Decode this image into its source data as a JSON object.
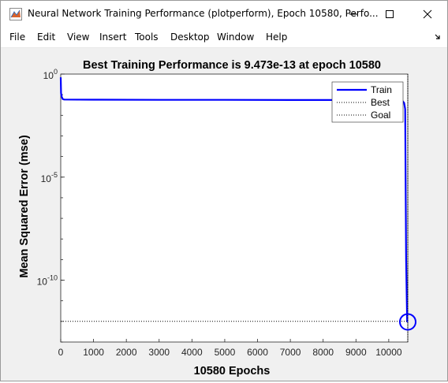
{
  "window": {
    "title": "Neural Network Training Performance (plotperform), Epoch 10580, Perfo...",
    "icon": "matlab-figure-icon",
    "controls": [
      "minimize-icon",
      "maximize-icon",
      "close-icon"
    ]
  },
  "menubar": {
    "items": [
      "File",
      "Edit",
      "View",
      "Insert",
      "Tools",
      "Desktop",
      "Window",
      "Help"
    ],
    "dock_icon": "dock-arrow-icon"
  },
  "chart_data": {
    "type": "line",
    "title": "Best Training Performance is 9.473e-13 at epoch 10580",
    "xlabel": "10580 Epochs",
    "ylabel": "Mean Squared Error  (mse)",
    "xlim": [
      0,
      10580
    ],
    "ylim": [
      1e-13,
      1
    ],
    "yscale": "log",
    "xticks": [
      0,
      1000,
      2000,
      3000,
      4000,
      5000,
      6000,
      7000,
      8000,
      9000,
      10000
    ],
    "yticks": [
      {
        "base": "10",
        "exp": "0",
        "value": 1
      },
      {
        "base": "10",
        "exp": "-5",
        "value": 1e-05
      },
      {
        "base": "10",
        "exp": "-10",
        "value": 1e-10
      }
    ],
    "grid": false,
    "legend": {
      "position": "top-right",
      "entries": [
        "Train",
        "Best",
        "Goal"
      ]
    },
    "series": [
      {
        "name": "Train",
        "style": "solid",
        "color": "#0000ff",
        "x": [
          0,
          10,
          30,
          60,
          100,
          1000,
          3000,
          5000,
          7000,
          9000,
          10000,
          10350,
          10420,
          10470,
          10500,
          10530,
          10560,
          10580
        ],
        "y": [
          0.7,
          0.12,
          0.08,
          0.062,
          0.058,
          0.057,
          0.056,
          0.056,
          0.055,
          0.055,
          0.055,
          0.055,
          0.05,
          0.04,
          0.02,
          1e-09,
          1e-12,
          9.473e-13
        ]
      },
      {
        "name": "Best",
        "style": "dotted",
        "color": "#000000",
        "x": [
          10580,
          10580
        ],
        "y": [
          1e-13,
          1
        ]
      },
      {
        "name": "Goal",
        "style": "dotted",
        "color": "#000000",
        "x": [
          0,
          10580
        ],
        "y": [
          1e-12,
          1e-12
        ]
      }
    ],
    "best_marker": {
      "x": 10580,
      "y": 9.473e-13,
      "color": "#0000ff"
    }
  }
}
